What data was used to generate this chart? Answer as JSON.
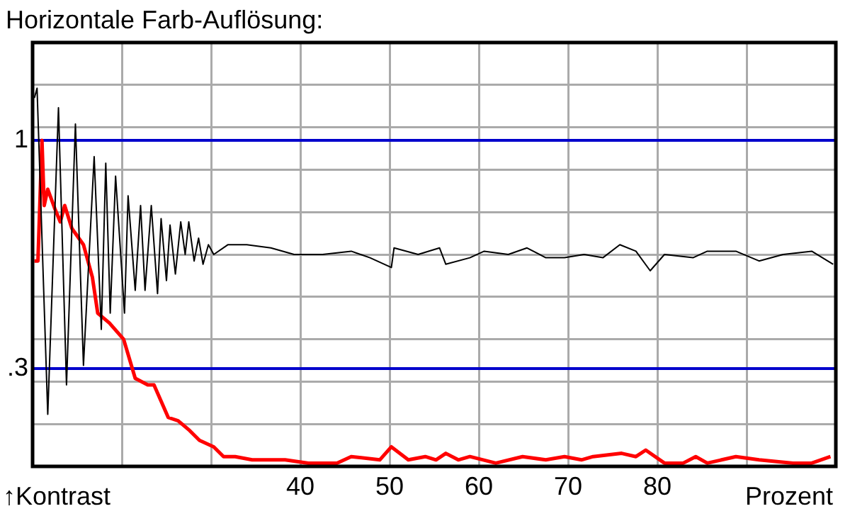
{
  "chart_data": {
    "type": "line",
    "title": "Horizontale Farb-Auflösung:",
    "xlabel": "Prozent",
    "ylabel": "↑Kontrast",
    "xlim": [
      10,
      100
    ],
    "xticks": [
      {
        "value": 10,
        "label": null
      },
      {
        "value": 20,
        "label": null
      },
      {
        "value": 30,
        "label": null
      },
      40,
      50,
      60,
      70,
      80,
      {
        "value": 90,
        "label": null
      },
      {
        "value": 100,
        "label": null
      }
    ],
    "ylim": [
      0,
      1.3
    ],
    "yticks": [
      {
        "value": 0.13,
        "label": null
      },
      {
        "value": 0.26,
        "label": null
      },
      {
        "value": 0.39,
        "label": null
      },
      {
        "value": 0.52,
        "label": null
      },
      {
        "value": 0.65,
        "label": null
      },
      {
        "value": 0.78,
        "label": null
      },
      {
        "value": 0.91,
        "label": null
      },
      {
        "value": 1.04,
        "label": null
      },
      {
        "value": 1.17,
        "label": null
      }
    ],
    "grid": true,
    "legend": false,
    "marker": "none",
    "line_style": "solid",
    "ref_lines": [
      {
        "axis": "y",
        "value": 1,
        "label": "1",
        "color": "#0000cc"
      },
      {
        "axis": "y",
        "value": 0.3,
        "label": ".3",
        "color": "#0000cc"
      }
    ],
    "series": [
      {
        "color": "#000000",
        "x": [
          10.2,
          10.5,
          11.7,
          12.9,
          13.8,
          14.8,
          15.7,
          16.9,
          17.7,
          18.2,
          18.7,
          19.3,
          20.3,
          20.7,
          21.5,
          22.1,
          22.6,
          23.3,
          24.0,
          24.4,
          25.0,
          25.4,
          26.0,
          26.6,
          27.1,
          27.5,
          28.1,
          28.6,
          29.1,
          29.7,
          30.3,
          31.9,
          34.0,
          36.7,
          39.3,
          42.5,
          45.7,
          47.8,
          50.2,
          50.5,
          53.2,
          55.6,
          56.3,
          59.0,
          60.6,
          63.3,
          65.4,
          67.5,
          69.6,
          71.8,
          73.9,
          75.8,
          77.6,
          79.2,
          80.8,
          84.0,
          85.6,
          88.8,
          91.4,
          94.1,
          97.3,
          99.7
        ],
        "values": [
          1.13,
          1.16,
          0.16,
          1.1,
          0.25,
          1.05,
          0.31,
          0.95,
          0.42,
          0.93,
          0.47,
          0.89,
          0.47,
          0.83,
          0.54,
          0.8,
          0.54,
          0.8,
          0.53,
          0.76,
          0.57,
          0.74,
          0.59,
          0.75,
          0.65,
          0.75,
          0.63,
          0.7,
          0.62,
          0.68,
          0.65,
          0.68,
          0.68,
          0.67,
          0.65,
          0.65,
          0.66,
          0.64,
          0.61,
          0.67,
          0.65,
          0.67,
          0.62,
          0.64,
          0.66,
          0.65,
          0.67,
          0.64,
          0.64,
          0.65,
          0.64,
          0.68,
          0.66,
          0.6,
          0.65,
          0.64,
          0.66,
          0.66,
          0.63,
          0.65,
          0.66,
          0.62
        ]
      },
      {
        "color": "#ff0000",
        "x": [
          10.2,
          10.6,
          11.05,
          11.3,
          11.7,
          12.5,
          13.1,
          13.6,
          14.4,
          15.7,
          16.7,
          17.3,
          18.6,
          20.2,
          21.5,
          22.9,
          23.6,
          25.2,
          26.3,
          27.6,
          28.7,
          30.3,
          31.4,
          32.7,
          34.6,
          38.3,
          40.9,
          44.1,
          45.7,
          48.9,
          50.2,
          52.1,
          54.0,
          55.2,
          56.3,
          57.7,
          59.0,
          61.9,
          64.9,
          67.5,
          69.6,
          71.5,
          72.8,
          76.0,
          77.6,
          78.7,
          80.8,
          82.9,
          84.3,
          85.6,
          88.8,
          91.4,
          95.2,
          97.3,
          99.4
        ],
        "values": [
          0.63,
          0.63,
          1.0,
          0.8,
          0.85,
          0.79,
          0.75,
          0.8,
          0.73,
          0.68,
          0.58,
          0.47,
          0.44,
          0.39,
          0.27,
          0.25,
          0.25,
          0.15,
          0.14,
          0.11,
          0.08,
          0.06,
          0.03,
          0.03,
          0.02,
          0.02,
          0.01,
          0.01,
          0.03,
          0.02,
          0.06,
          0.02,
          0.03,
          0.02,
          0.04,
          0.02,
          0.03,
          0.01,
          0.03,
          0.02,
          0.03,
          0.02,
          0.03,
          0.04,
          0.03,
          0.05,
          0.01,
          0.01,
          0.03,
          0.01,
          0.03,
          0.02,
          0.01,
          0.01,
          0.03
        ]
      }
    ]
  }
}
